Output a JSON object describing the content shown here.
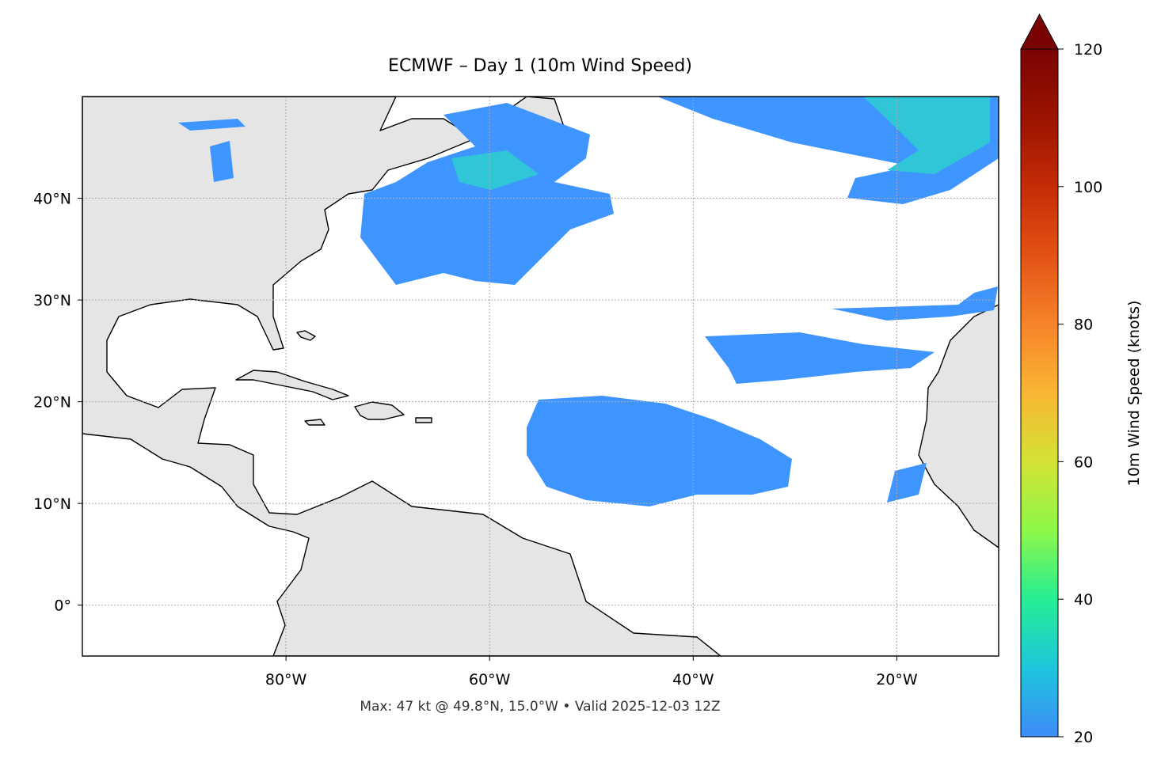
{
  "title": "ECMWF – Day 1 (10m Wind Speed)",
  "footer": "Max: 47 kt @ 49.8°N, 15.0°W • Valid 2025-12-03 12Z",
  "map": {
    "xlim": [
      -100,
      -10
    ],
    "ylim": [
      -5,
      50
    ],
    "xticks": [
      {
        "value": -80,
        "label": "80°W"
      },
      {
        "value": -60,
        "label": "60°W"
      },
      {
        "value": -40,
        "label": "40°W"
      },
      {
        "value": -20,
        "label": "20°W"
      }
    ],
    "yticks": [
      {
        "value": 0,
        "label": "0°"
      },
      {
        "value": 10,
        "label": "10°N"
      },
      {
        "value": 20,
        "label": "20°N"
      },
      {
        "value": 30,
        "label": "30°N"
      },
      {
        "value": 40,
        "label": "40°N"
      }
    ],
    "grid": true
  },
  "colorbar": {
    "label": "10m Wind Speed (knots)",
    "lim": [
      20,
      120
    ],
    "ticks": [
      20,
      40,
      60,
      80,
      100,
      120
    ]
  }
}
